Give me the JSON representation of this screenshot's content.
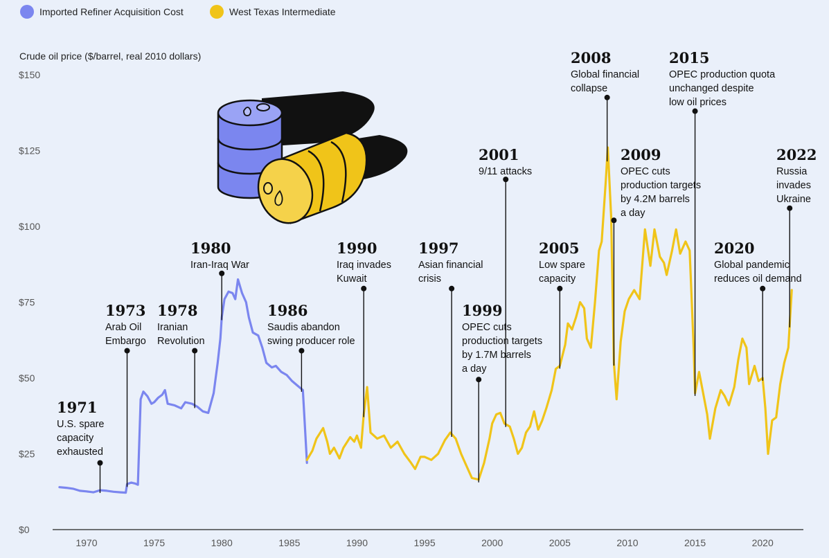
{
  "chart_data": {
    "type": "line",
    "ylabel": "Crude oil price ($/barrel, real 2010 dollars)",
    "xlim": [
      1967.8,
      2022.5
    ],
    "ylim": [
      0,
      150
    ],
    "y_ticks": [
      0,
      25,
      50,
      75,
      100,
      125,
      150
    ],
    "y_tick_labels": [
      "$0",
      "$25",
      "$50",
      "$75",
      "$100",
      "$125",
      "$150"
    ],
    "x_ticks": [
      1970,
      1975,
      1980,
      1985,
      1990,
      1995,
      2000,
      2005,
      2010,
      2015,
      2020
    ],
    "x_tick_labels": [
      "1970",
      "1975",
      "1980",
      "1985",
      "1990",
      "1995",
      "2000",
      "2005",
      "2010",
      "2015",
      "2020"
    ],
    "legend": [
      {
        "label": "Imported Refiner Acquisition Cost",
        "color": "#7b86ef"
      },
      {
        "label": "West Texas Intermediate",
        "color": "#f0c419"
      }
    ],
    "series": [
      {
        "name": "Imported Refiner Acquisition Cost",
        "color": "#7b86ef",
        "points": [
          [
            1968.0,
            14.0
          ],
          [
            1968.5,
            13.8
          ],
          [
            1969.0,
            13.5
          ],
          [
            1969.5,
            12.8
          ],
          [
            1970.0,
            12.6
          ],
          [
            1970.5,
            12.3
          ],
          [
            1971.0,
            13.0
          ],
          [
            1971.5,
            12.8
          ],
          [
            1972.0,
            12.5
          ],
          [
            1972.5,
            12.3
          ],
          [
            1972.9,
            12.2
          ],
          [
            1973.0,
            15.0
          ],
          [
            1973.3,
            15.5
          ],
          [
            1973.6,
            15.2
          ],
          [
            1973.8,
            14.8
          ],
          [
            1974.0,
            43.0
          ],
          [
            1974.2,
            45.5
          ],
          [
            1974.5,
            44.0
          ],
          [
            1974.8,
            41.5
          ],
          [
            1975.0,
            42.0
          ],
          [
            1975.3,
            43.5
          ],
          [
            1975.6,
            44.5
          ],
          [
            1975.8,
            46.0
          ],
          [
            1976.0,
            41.5
          ],
          [
            1976.5,
            41.0
          ],
          [
            1977.0,
            40.0
          ],
          [
            1977.3,
            42.0
          ],
          [
            1977.8,
            41.5
          ],
          [
            1978.2,
            40.5
          ],
          [
            1978.6,
            39.0
          ],
          [
            1979.0,
            38.5
          ],
          [
            1979.4,
            45.0
          ],
          [
            1979.7,
            55.0
          ],
          [
            1979.9,
            63.0
          ],
          [
            1980.0,
            70.0
          ],
          [
            1980.2,
            76.0
          ],
          [
            1980.5,
            78.5
          ],
          [
            1980.8,
            78.0
          ],
          [
            1981.0,
            76.0
          ],
          [
            1981.2,
            82.5
          ],
          [
            1981.5,
            78.0
          ],
          [
            1981.8,
            75.0
          ],
          [
            1982.0,
            70.0
          ],
          [
            1982.3,
            65.0
          ],
          [
            1982.7,
            64.0
          ],
          [
            1983.0,
            60.0
          ],
          [
            1983.3,
            55.0
          ],
          [
            1983.7,
            53.5
          ],
          [
            1984.0,
            54.0
          ],
          [
            1984.4,
            52.0
          ],
          [
            1984.8,
            51.0
          ],
          [
            1985.2,
            49.0
          ],
          [
            1985.6,
            47.5
          ],
          [
            1986.0,
            46.0
          ],
          [
            1986.1,
            38.0
          ],
          [
            1986.3,
            22.0
          ]
        ]
      },
      {
        "name": "West Texas Intermediate",
        "color": "#f0c419",
        "points": [
          [
            1986.3,
            23.0
          ],
          [
            1986.7,
            26.0
          ],
          [
            1987.0,
            30.0
          ],
          [
            1987.5,
            33.5
          ],
          [
            1987.8,
            29.0
          ],
          [
            1988.0,
            25.0
          ],
          [
            1988.3,
            27.0
          ],
          [
            1988.7,
            23.5
          ],
          [
            1989.0,
            27.0
          ],
          [
            1989.5,
            30.5
          ],
          [
            1989.8,
            29.0
          ],
          [
            1990.0,
            31.0
          ],
          [
            1990.3,
            27.0
          ],
          [
            1990.5,
            38.0
          ],
          [
            1990.75,
            47.0
          ],
          [
            1991.0,
            32.0
          ],
          [
            1991.5,
            30.0
          ],
          [
            1992.0,
            31.0
          ],
          [
            1992.5,
            27.0
          ],
          [
            1993.0,
            29.0
          ],
          [
            1993.5,
            25.0
          ],
          [
            1994.0,
            22.0
          ],
          [
            1994.3,
            20.0
          ],
          [
            1994.7,
            24.0
          ],
          [
            1995.0,
            24.0
          ],
          [
            1995.5,
            23.0
          ],
          [
            1996.0,
            25.0
          ],
          [
            1996.5,
            29.5
          ],
          [
            1996.9,
            32.0
          ],
          [
            1997.3,
            30.0
          ],
          [
            1997.7,
            25.0
          ],
          [
            1998.0,
            22.0
          ],
          [
            1998.5,
            17.0
          ],
          [
            1999.0,
            16.5
          ],
          [
            1999.4,
            22.0
          ],
          [
            1999.8,
            30.0
          ],
          [
            2000.0,
            35.0
          ],
          [
            2000.3,
            38.0
          ],
          [
            2000.6,
            38.5
          ],
          [
            2000.9,
            35.0
          ],
          [
            2001.3,
            34.0
          ],
          [
            2001.6,
            30.0
          ],
          [
            2001.9,
            25.0
          ],
          [
            2002.2,
            27.0
          ],
          [
            2002.5,
            32.0
          ],
          [
            2002.8,
            34.0
          ],
          [
            2003.1,
            39.0
          ],
          [
            2003.4,
            33.0
          ],
          [
            2003.7,
            36.0
          ],
          [
            2004.0,
            40.0
          ],
          [
            2004.4,
            46.0
          ],
          [
            2004.7,
            53.0
          ],
          [
            2005.0,
            54.0
          ],
          [
            2005.4,
            61.0
          ],
          [
            2005.6,
            68.0
          ],
          [
            2005.9,
            66.0
          ],
          [
            2006.2,
            70.0
          ],
          [
            2006.5,
            75.0
          ],
          [
            2006.8,
            73.0
          ],
          [
            2007.0,
            63.0
          ],
          [
            2007.3,
            60.0
          ],
          [
            2007.6,
            75.0
          ],
          [
            2007.9,
            92.0
          ],
          [
            2008.1,
            95.0
          ],
          [
            2008.4,
            115.0
          ],
          [
            2008.55,
            126.0
          ],
          [
            2008.8,
            103.0
          ],
          [
            2009.0,
            55.0
          ],
          [
            2009.2,
            43.0
          ],
          [
            2009.5,
            62.0
          ],
          [
            2009.8,
            72.0
          ],
          [
            2010.1,
            76.0
          ],
          [
            2010.5,
            79.0
          ],
          [
            2010.9,
            76.0
          ],
          [
            2011.3,
            99.0
          ],
          [
            2011.7,
            87.0
          ],
          [
            2012.0,
            99.0
          ],
          [
            2012.4,
            90.0
          ],
          [
            2012.7,
            88.0
          ],
          [
            2012.9,
            84.0
          ],
          [
            2013.3,
            92.0
          ],
          [
            2013.6,
            99.0
          ],
          [
            2013.9,
            91.0
          ],
          [
            2014.3,
            95.0
          ],
          [
            2014.6,
            92.0
          ],
          [
            2014.9,
            60.0
          ],
          [
            2015.0,
            45.0
          ],
          [
            2015.3,
            52.0
          ],
          [
            2015.6,
            45.0
          ],
          [
            2015.9,
            38.0
          ],
          [
            2016.1,
            30.0
          ],
          [
            2016.5,
            40.0
          ],
          [
            2016.9,
            46.0
          ],
          [
            2017.2,
            44.0
          ],
          [
            2017.5,
            41.0
          ],
          [
            2017.9,
            47.0
          ],
          [
            2018.2,
            56.0
          ],
          [
            2018.5,
            63.0
          ],
          [
            2018.8,
            60.0
          ],
          [
            2019.0,
            48.0
          ],
          [
            2019.4,
            54.0
          ],
          [
            2019.7,
            49.0
          ],
          [
            2020.0,
            50.0
          ],
          [
            2020.2,
            40.0
          ],
          [
            2020.4,
            25.0
          ],
          [
            2020.7,
            36.0
          ],
          [
            2021.0,
            37.0
          ],
          [
            2021.3,
            48.0
          ],
          [
            2021.6,
            55.0
          ],
          [
            2021.9,
            60.0
          ],
          [
            2022.15,
            79.0
          ]
        ]
      }
    ],
    "annotations": [
      {
        "year": "1971",
        "lines": [
          "U.S. spare",
          "capacity",
          "exhausted"
        ],
        "x": 1971.0,
        "y": 22.0
      },
      {
        "year": "1973",
        "lines": [
          "Arab Oil",
          "Embargo"
        ],
        "x": 1973.0,
        "y": 59.0
      },
      {
        "year": "1978",
        "lines": [
          "Iranian",
          "Revolution"
        ],
        "x": 1978.0,
        "y": 59.0
      },
      {
        "year": "1980",
        "lines": [
          "Iran-Iraq War"
        ],
        "x": 1980.0,
        "y": 84.5
      },
      {
        "year": "1986",
        "lines": [
          "Saudis abandon",
          "swing producer role"
        ],
        "x": 1985.9,
        "y": 59.0
      },
      {
        "year": "1990",
        "lines": [
          "Iraq invades",
          "Kuwait"
        ],
        "x": 1990.5,
        "y": 79.5
      },
      {
        "year": "1997",
        "lines": [
          "Asian financial",
          "crisis"
        ],
        "x": 1997.0,
        "y": 79.5
      },
      {
        "year": "1999",
        "lines": [
          "OPEC cuts",
          "production targets",
          "by 1.7M barrels",
          "a day"
        ],
        "x": 1999.0,
        "y": 49.5
      },
      {
        "year": "2001",
        "lines": [
          "9/11 attacks"
        ],
        "x": 2001.0,
        "y": 115.5
      },
      {
        "year": "2005",
        "lines": [
          "Low spare",
          "capacity"
        ],
        "x": 2005.0,
        "y": 79.5
      },
      {
        "year": "2008",
        "lines": [
          "Global financial",
          "collapse"
        ],
        "x": 2008.5,
        "y": 142.5
      },
      {
        "year": "2009",
        "lines": [
          "OPEC cuts",
          "production targets",
          "by 4.2M barrels",
          "a day"
        ],
        "x": 2009.0,
        "y": 102.0
      },
      {
        "year": "2015",
        "lines": [
          "OPEC production quota",
          "unchanged despite",
          "low oil prices"
        ],
        "x": 2015.0,
        "y": 138.0
      },
      {
        "year": "2020",
        "lines": [
          "Global pandemic",
          "reduces oil demand"
        ],
        "x": 2020.0,
        "y": 79.5
      },
      {
        "year": "2022",
        "lines": [
          "Russia",
          "invades",
          "Ukraine"
        ],
        "x": 2022.0,
        "y": 106.0
      }
    ]
  }
}
